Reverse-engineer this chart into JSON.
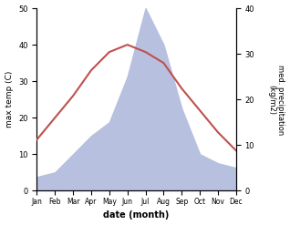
{
  "months": [
    "Jan",
    "Feb",
    "Mar",
    "Apr",
    "May",
    "Jun",
    "Jul",
    "Aug",
    "Sep",
    "Oct",
    "Nov",
    "Dec"
  ],
  "temperature": [
    14,
    20,
    26,
    33,
    38,
    40,
    38,
    35,
    28,
    22,
    16,
    11
  ],
  "precipitation": [
    3,
    4,
    8,
    12,
    15,
    25,
    40,
    32,
    18,
    8,
    6,
    5
  ],
  "temp_color": "#c0504d",
  "precip_fill_color": "#b8c0e0",
  "temp_ylim": [
    0,
    50
  ],
  "precip_ylim": [
    0,
    40
  ],
  "temp_yticks": [
    0,
    10,
    20,
    30,
    40,
    50
  ],
  "precip_yticks": [
    0,
    10,
    20,
    30,
    40
  ],
  "xlabel": "date (month)",
  "ylabel_left": "max temp (C)",
  "ylabel_right": "med. precipitation\n(kg/m2)",
  "title": ""
}
